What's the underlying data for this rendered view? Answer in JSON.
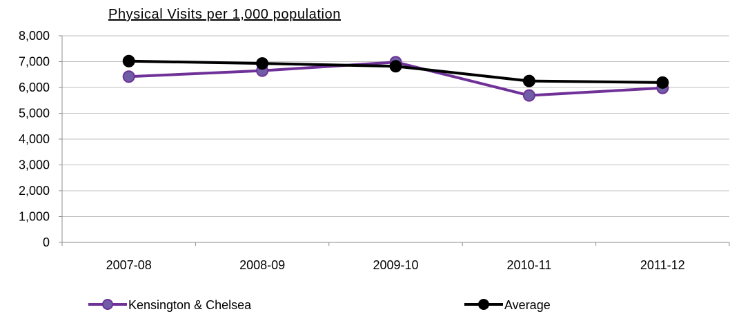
{
  "chart_data": {
    "type": "line",
    "title": "Physical Visits per 1,000 population",
    "xlabel": "",
    "ylabel": "",
    "categories": [
      "2007-08",
      "2008-09",
      "2009-10",
      "2010-11",
      "2011-12"
    ],
    "ylim": [
      0,
      8000
    ],
    "yticks": [
      0,
      1000,
      2000,
      3000,
      4000,
      5000,
      6000,
      7000,
      8000
    ],
    "ytick_labels": [
      "0",
      "1,000",
      "2,000",
      "3,000",
      "4,000",
      "5,000",
      "6,000",
      "7,000",
      "8,000"
    ],
    "grid": true,
    "legend_position": "bottom",
    "series": [
      {
        "name": "Kensington & Chelsea",
        "values": [
          6420,
          6650,
          6980,
          5690,
          5980
        ],
        "color": "#6f3198",
        "marker_fill": "#6f5ea6"
      },
      {
        "name": "Average",
        "values": [
          7020,
          6930,
          6820,
          6250,
          6190
        ],
        "color": "#000000",
        "marker_fill": "#000000"
      }
    ]
  }
}
